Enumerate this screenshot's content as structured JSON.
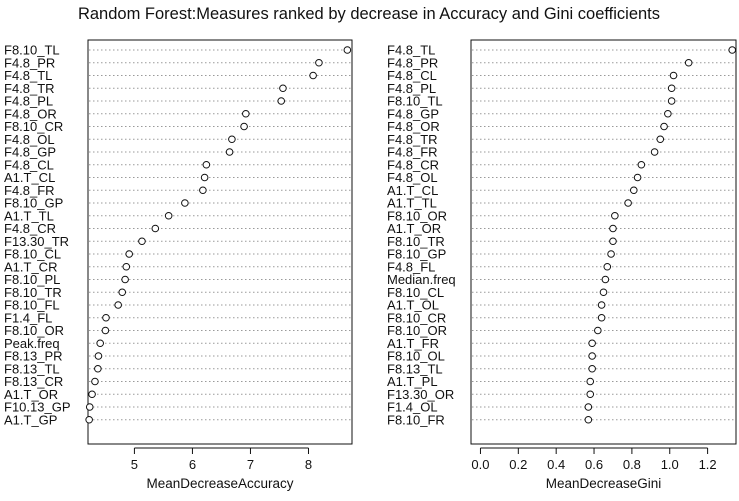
{
  "chart_data": [
    {
      "type": "dotchart",
      "title": "Random Forest:Measures ranked by decrease in Accuracy and Gini coefficients",
      "xlabel": "MeanDecreaseAccuracy",
      "xlim": [
        4.2,
        8.75
      ],
      "xticks": [
        5,
        6,
        7,
        8
      ],
      "grid": "dotted horizontal guides",
      "categories": [
        "F8.10_TL",
        "F4.8_PR",
        "F4.8_TL",
        "F4.8_TR",
        "F4.8_PL",
        "F4.8_OR",
        "F8.10_CR",
        "F4.8_OL",
        "F4.8_GP",
        "F4.8_CL",
        "A1.T_CL",
        "F4.8_FR",
        "F8.10_GP",
        "A1.T_TL",
        "F4.8_CR",
        "F13.30_TR",
        "F8.10_CL",
        "A1.T_CR",
        "F8.10_PL",
        "F8.10_TR",
        "F8.10_FL",
        "F1.4_FL",
        "F8.10_OR",
        "Peak.freq",
        "F8.13_PR",
        "F8.13_TL",
        "F8.13_CR",
        "A1.T_OR",
        "F10.13_GP",
        "A1.T_GP"
      ],
      "values": [
        8.67,
        8.18,
        8.08,
        7.56,
        7.53,
        6.92,
        6.89,
        6.68,
        6.64,
        6.24,
        6.21,
        6.18,
        5.87,
        5.59,
        5.36,
        5.13,
        4.91,
        4.86,
        4.84,
        4.79,
        4.72,
        4.51,
        4.5,
        4.41,
        4.38,
        4.37,
        4.32,
        4.27,
        4.23,
        4.22
      ]
    },
    {
      "type": "dotchart",
      "xlabel": "MeanDecreaseGini",
      "xlim": [
        -0.05,
        1.35
      ],
      "xticks": [
        0.0,
        0.2,
        0.4,
        0.6,
        0.8,
        1.0,
        1.2
      ],
      "grid": "dotted horizontal guides",
      "categories": [
        "F4.8_TL",
        "F4.8_PR",
        "F4.8_CL",
        "F4.8_PL",
        "F8.10_TL",
        "F4.8_GP",
        "F4.8_OR",
        "F4.8_TR",
        "F4.8_FR",
        "F4.8_CR",
        "F4.8_OL",
        "A1.T_CL",
        "A1.T_TL",
        "F8.10_OR",
        "A1.T_OR",
        "F8.10_TR",
        "F8.10_GP",
        "F4.8_FL",
        "Median.freq",
        "F8.10_CL",
        "A1.T_OL",
        "F8.10_CR",
        "F8.10_OR",
        "A1.T_FR",
        "F8.10_OL",
        "F8.13_TL",
        "A1.T_PL",
        "F13.30_OR",
        "F1.4_OL",
        "F8.10_FR"
      ],
      "values": [
        1.33,
        1.1,
        1.02,
        1.01,
        1.01,
        0.99,
        0.97,
        0.95,
        0.92,
        0.85,
        0.83,
        0.81,
        0.78,
        0.71,
        0.7,
        0.7,
        0.69,
        0.67,
        0.66,
        0.65,
        0.64,
        0.64,
        0.62,
        0.59,
        0.59,
        0.59,
        0.58,
        0.58,
        0.57,
        0.57
      ]
    }
  ]
}
